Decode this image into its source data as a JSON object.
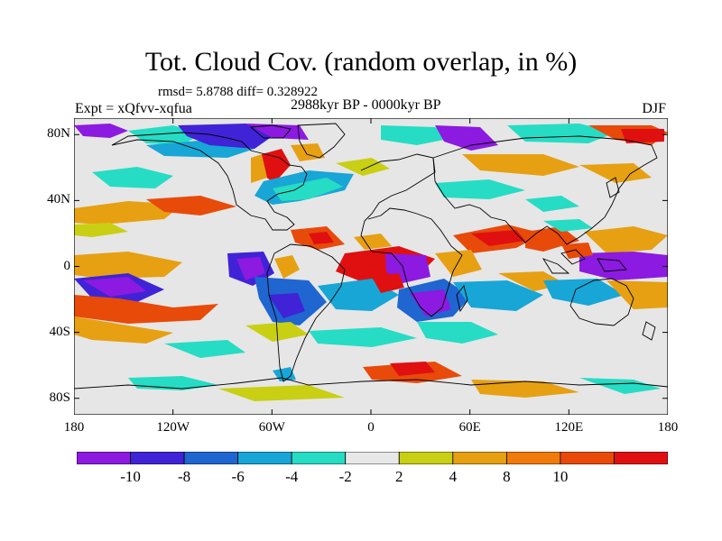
{
  "header": {
    "title": "Tot. Cloud Cov. (random overlap, in %)",
    "stats": "rmsd= 5.8788 diff= 0.328922",
    "experiment": "Expt = xQfvv-xqfua",
    "period": "2988kyr BP - 0000kyr BP",
    "season": "DJF"
  },
  "map": {
    "type": "heatmap",
    "projection": "cylindrical-equidistant",
    "lon_range": [
      -180,
      180
    ],
    "lat_range": [
      -90,
      90
    ],
    "y_ticks": [
      {
        "label": "80N",
        "lat": 80
      },
      {
        "label": "40N",
        "lat": 40
      },
      {
        "label": "0",
        "lat": 0
      },
      {
        "label": "40S",
        "lat": -40
      },
      {
        "label": "80S",
        "lat": -80
      }
    ],
    "x_ticks": [
      {
        "label": "180",
        "lon": -180
      },
      {
        "label": "120W",
        "lon": -120
      },
      {
        "label": "60W",
        "lon": -60
      },
      {
        "label": "0",
        "lon": 0
      },
      {
        "label": "60E",
        "lon": 60
      },
      {
        "label": "120E",
        "lon": 120
      },
      {
        "label": "180",
        "lon": 180
      }
    ],
    "background_color": "#e6e6e6"
  },
  "colorbar": {
    "colors": [
      "#8c1ae0",
      "#4023d6",
      "#1f66d1",
      "#17a6d6",
      "#26dcc4",
      "#e8e8e8",
      "#c9cf12",
      "#e6a012",
      "#f07a0a",
      "#e84a0a",
      "#e01010"
    ],
    "labels": [
      "-10",
      "-8",
      "-6",
      "-4",
      "-2",
      "2",
      "4",
      "8",
      "10"
    ]
  }
}
